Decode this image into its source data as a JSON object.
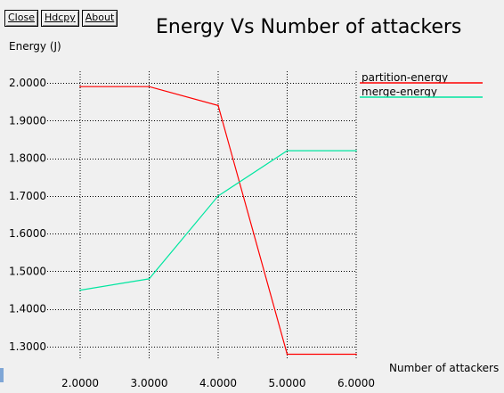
{
  "toolbar": {
    "close_label": "Close",
    "hdcpy_label": "Hdcpy",
    "about_label": "About"
  },
  "colors": {
    "background": "#f0f0f0",
    "grid": "#000000",
    "partition": "#ff0000",
    "merge": "#00e6a0"
  },
  "chart_data": {
    "type": "line",
    "title": "Energy Vs Number of attackers",
    "ylabel": "Energy (J)",
    "xlabel": "Number of attackers",
    "xlim": [
      2,
      6
    ],
    "ylim": [
      1.27,
      2.02
    ],
    "grid": true,
    "legend_position": "right",
    "x_ticks": [
      2,
      3,
      4,
      5,
      6
    ],
    "x_tick_labels": [
      "2.0000",
      "3.0000",
      "4.0000",
      "5.0000",
      "6.0000"
    ],
    "y_ticks": [
      2.0,
      1.9,
      1.8,
      1.7,
      1.6,
      1.5,
      1.4,
      1.3
    ],
    "y_tick_labels": [
      "2.0000",
      "1.9000",
      "1.8000",
      "1.7000",
      "1.6000",
      "1.5000",
      "1.4000",
      "1.3000"
    ],
    "x": [
      2,
      3,
      4,
      5,
      6
    ],
    "series": [
      {
        "name": "partition-energy",
        "color": "#ff0000",
        "values": [
          1.99,
          1.99,
          1.94,
          1.28,
          1.28
        ]
      },
      {
        "name": "merge-energy",
        "color": "#00e6a0",
        "values": [
          1.45,
          1.48,
          1.7,
          1.82,
          1.82
        ]
      }
    ]
  }
}
